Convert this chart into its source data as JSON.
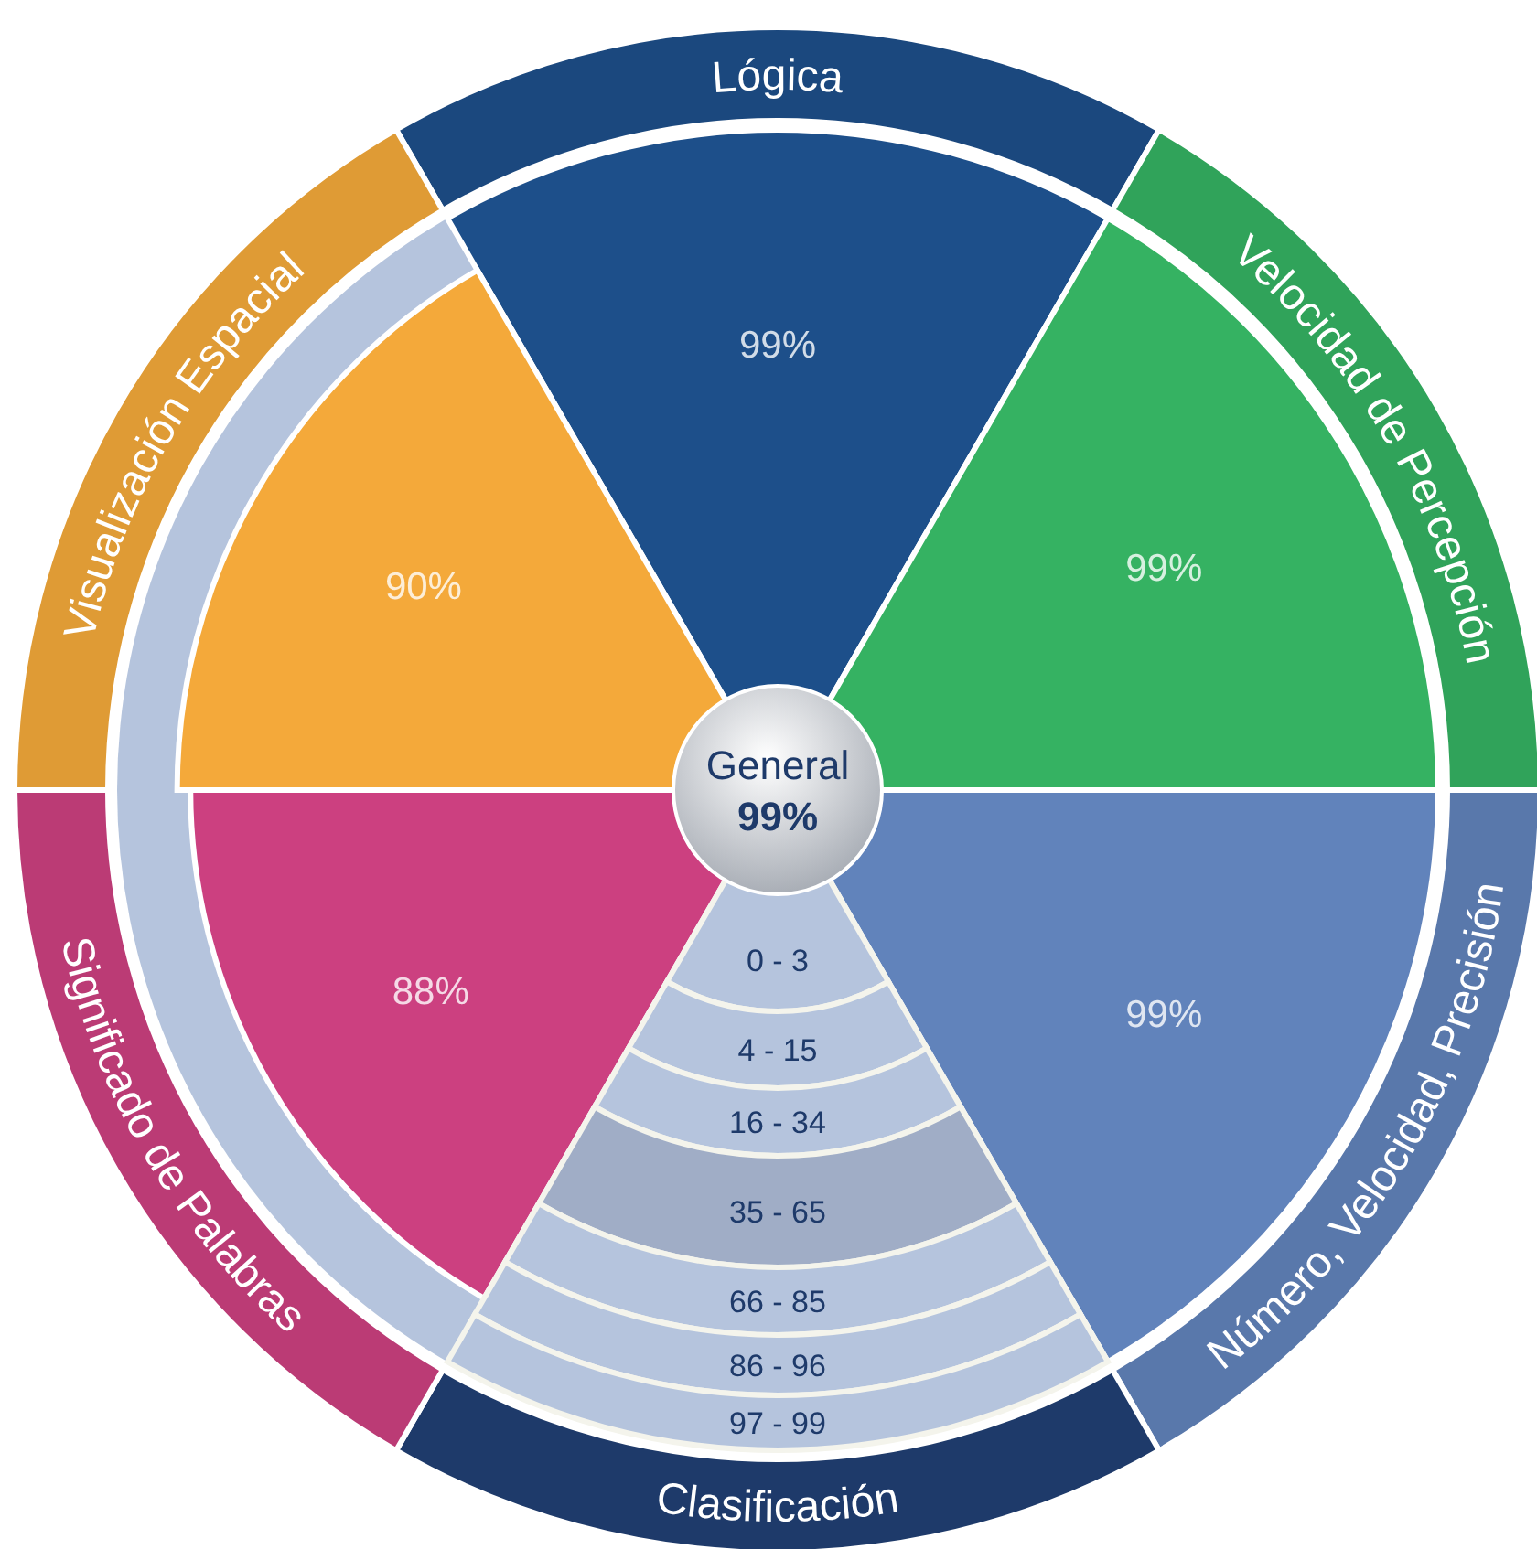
{
  "chart_data": {
    "type": "other",
    "categories": [
      "Lógica",
      "Velocidad de Percepción",
      "Número, Velocidad, Precisión",
      "Clasificación",
      "Significado de Palabras",
      "Visualización Espacial"
    ],
    "values": [
      99,
      99,
      99,
      null,
      88,
      90
    ],
    "value_labels": [
      "99%",
      "99%",
      "99%",
      null,
      "88%",
      "90%"
    ],
    "colors": [
      "#1d4f8a",
      "#35b262",
      "#6183bb",
      "#1e3a6a",
      "#cc4080",
      "#f4a93a"
    ],
    "annotations": [
      "General",
      "99%",
      "0 - 3",
      "4 - 15",
      "16 - 34",
      "35 - 65",
      "66 - 85",
      "86 - 96",
      "97 - 99"
    ]
  }
}
